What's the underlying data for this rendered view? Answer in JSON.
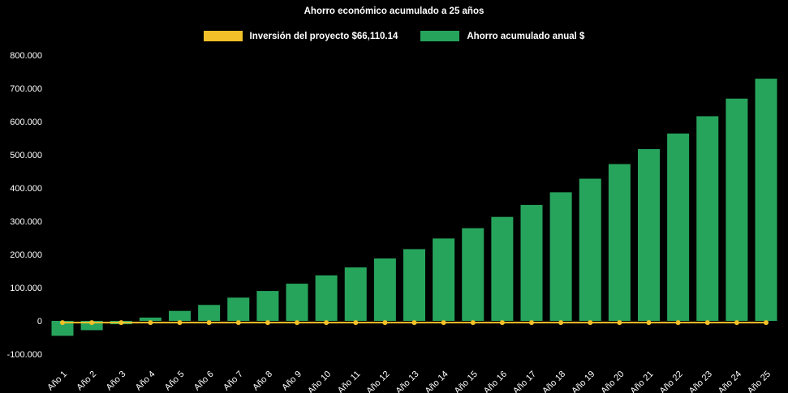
{
  "chart_data": {
    "type": "bar",
    "title": "Ahorro económico acumulado a 25 años",
    "background_color": "#000000",
    "text_color": "#ffffff",
    "grid": false,
    "legend_position": "top",
    "ylim": [
      -100000,
      800000
    ],
    "y_ticks": [
      800000,
      700000,
      600000,
      500000,
      400000,
      300000,
      200000,
      100000,
      0,
      -100000
    ],
    "y_tick_labels": [
      "800.000",
      "700.000",
      "600.000",
      "500.000",
      "400.000",
      "300.000",
      "200.000",
      "100.000",
      "0",
      "-100.000"
    ],
    "categories": [
      "Año 1",
      "Año 2",
      "Año 3",
      "Año 4",
      "Año 5",
      "Año 6",
      "Año 7",
      "Año 8",
      "Año 9",
      "Año 10",
      "Año 11",
      "Año 12",
      "Año 13",
      "Año 14",
      "Año 15",
      "Año 16",
      "Año 17",
      "Año 18",
      "Año 19",
      "Año 20",
      "Año 21",
      "Año 22",
      "Año 23",
      "Año 24",
      "Año 25"
    ],
    "series": [
      {
        "name": "Inversión del proyecto $66,110.14",
        "type": "line",
        "color": "#f2c029",
        "values": [
          -5000,
          -5000,
          -5000,
          -5000,
          -5000,
          -5000,
          -5000,
          -5000,
          -5000,
          -5000,
          -5000,
          -5000,
          -5000,
          -5000,
          -5000,
          -5000,
          -5000,
          -5000,
          -5000,
          -5000,
          -5000,
          -5000,
          -5000,
          -5000,
          -5000
        ]
      },
      {
        "name": "Ahorro acumulado anual $",
        "type": "bar",
        "color": "#27a45c",
        "values": [
          -45000,
          -28000,
          -10000,
          10000,
          30000,
          48000,
          70000,
          90000,
          112000,
          137000,
          161000,
          188000,
          216000,
          248000,
          279000,
          313000,
          349000,
          387000,
          428000,
          472000,
          517000,
          564000,
          616000,
          669000,
          729000
        ]
      }
    ]
  }
}
